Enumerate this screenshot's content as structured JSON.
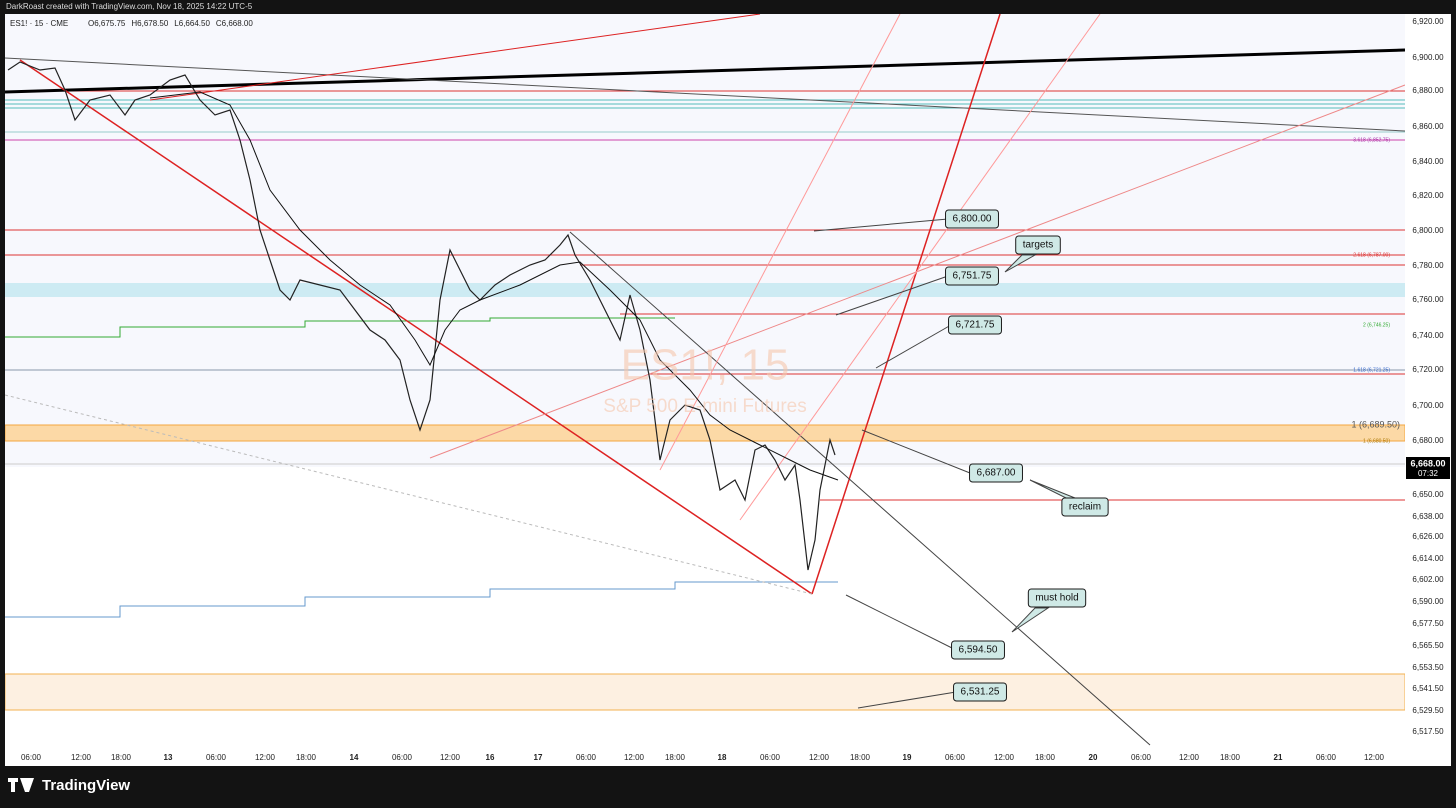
{
  "header": {
    "attribution": "DarkRoast created with TradingView.com, Nov 18, 2025 14:22 UTC-5",
    "symbol_line": "ES1! · 15 · CME",
    "ohlc": [
      "O6,675.75",
      "H6,678.50",
      "L6,664.50",
      "C6,668.00"
    ]
  },
  "watermark": {
    "symbol": "ES1!, 15",
    "description": "S&P 500 E-mini Futures"
  },
  "price_axis": {
    "labels": [
      "6,920.00",
      "6,900.00",
      "6,880.00",
      "6,860.00",
      "6,840.00",
      "6,820.00",
      "6,800.00",
      "6,780.00",
      "6,760.00",
      "6,740.00",
      "6,720.00",
      "6,700.00",
      "6,680.00",
      "6,650.00",
      "6,638.00",
      "6,626.00",
      "6,614.00",
      "6,602.00",
      "6,590.00",
      "6,577.50",
      "6,565.50",
      "6,553.50",
      "6,541.50",
      "6,529.50",
      "6,517.50"
    ],
    "last_price": "6,668.00",
    "countdown": "07:32"
  },
  "time_axis": {
    "labels": [
      "06:00",
      "12:00",
      "18:00",
      "13",
      "06:00",
      "12:00",
      "18:00",
      "14",
      "06:00",
      "12:00",
      "16",
      "17",
      "06:00",
      "12:00",
      "18:00",
      "18",
      "06:00",
      "12:00",
      "18:00",
      "19",
      "06:00",
      "12:00",
      "18:00",
      "20",
      "06:00",
      "12:00",
      "18:00",
      "21",
      "06:00",
      "12:00"
    ]
  },
  "annotations": [
    "6,800.00",
    "targets",
    "6,751.75",
    "6,721.75",
    "6,687.00",
    "reclaim",
    "must hold",
    "6,594.50",
    "6,531.25"
  ],
  "fib_labels": [
    "3.618 (6,852.75)",
    "2.618 (6,787.00)",
    "2 (6,746.25)",
    "1.618 (6,721.25)",
    "1 (6,689.50)",
    "1 (6,680.50)"
  ],
  "footer": {
    "brand": "TradingView"
  }
}
